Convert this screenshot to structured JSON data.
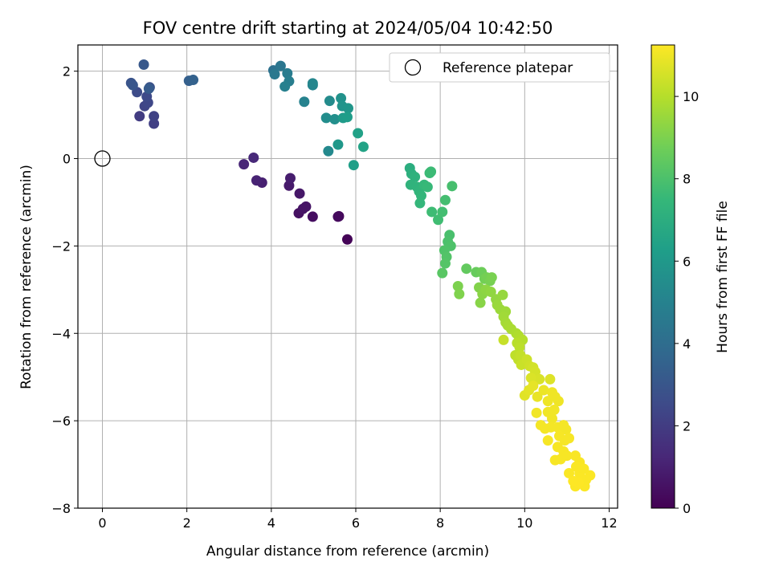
{
  "chart_data": {
    "type": "scatter",
    "title": "FOV centre drift starting at 2024/05/04 10:42:50",
    "xlabel": "Angular distance from reference (arcmin)",
    "ylabel": "Rotation from reference (arcmin)",
    "xlim": [
      -0.58,
      12.2
    ],
    "ylim": [
      -8.0,
      2.6
    ],
    "xticks": [
      0,
      2,
      4,
      6,
      8,
      10,
      12
    ],
    "yticks": [
      -8,
      -6,
      -4,
      -2,
      0,
      2
    ],
    "grid": true,
    "legend": {
      "position": "top-right",
      "entries": [
        "Reference platepar"
      ]
    },
    "reference_point": {
      "x": 0,
      "y": 0
    },
    "colorbar": {
      "label": "Hours from first FF file",
      "range": [
        0,
        11.25
      ],
      "ticks": [
        0,
        2,
        4,
        6,
        8,
        10
      ],
      "colormap": "viridis",
      "colors": [
        "#440154",
        "#482878",
        "#3e4a89",
        "#31688e",
        "#26828e",
        "#1f9e89",
        "#35b779",
        "#6ece58",
        "#b5de2b",
        "#fde725"
      ]
    },
    "series": [
      {
        "points": [
          [
            5.8,
            -1.85,
            0.1
          ],
          [
            5.6,
            -1.32,
            0.2
          ],
          [
            5.58,
            -1.33,
            0.3
          ],
          [
            4.98,
            -1.33,
            0.4
          ],
          [
            4.65,
            -1.25,
            0.5
          ],
          [
            4.82,
            -1.1,
            0.6
          ],
          [
            4.75,
            -1.15,
            0.6
          ],
          [
            4.67,
            -0.8,
            0.7
          ],
          [
            4.42,
            -0.62,
            0.8
          ],
          [
            4.45,
            -0.45,
            0.9
          ],
          [
            3.78,
            -0.55,
            1.0
          ],
          [
            3.65,
            -0.5,
            1.1
          ],
          [
            3.35,
            -0.13,
            1.2
          ],
          [
            3.58,
            0.02,
            1.3
          ],
          [
            0.88,
            0.97,
            2.0
          ],
          [
            1.22,
            0.8,
            2.1
          ],
          [
            1.22,
            0.97,
            2.2
          ],
          [
            1.0,
            1.2,
            2.3
          ],
          [
            1.08,
            1.28,
            2.4
          ],
          [
            1.05,
            1.42,
            2.5
          ],
          [
            0.82,
            1.52,
            2.6
          ],
          [
            1.12,
            1.63,
            2.8
          ],
          [
            0.68,
            1.73,
            2.9
          ],
          [
            0.72,
            1.68,
            3.0
          ],
          [
            0.98,
            2.15,
            3.1
          ],
          [
            1.1,
            1.6,
            3.2
          ],
          [
            2.05,
            1.78,
            3.4
          ],
          [
            2.15,
            1.8,
            3.5
          ],
          [
            4.05,
            2.02,
            4.2
          ],
          [
            4.22,
            2.12,
            4.4
          ],
          [
            4.08,
            1.93,
            4.5
          ],
          [
            4.38,
            1.95,
            4.7
          ],
          [
            4.42,
            1.77,
            4.8
          ],
          [
            4.32,
            1.65,
            4.9
          ],
          [
            4.78,
            1.3,
            5.0
          ],
          [
            4.98,
            1.68,
            5.1
          ],
          [
            4.98,
            1.72,
            5.2
          ],
          [
            5.35,
            0.17,
            5.3
          ],
          [
            5.38,
            1.32,
            5.4
          ],
          [
            5.3,
            0.93,
            5.5
          ],
          [
            5.5,
            0.9,
            5.6
          ],
          [
            5.65,
            1.38,
            5.7
          ],
          [
            5.68,
            1.2,
            5.8
          ],
          [
            5.82,
            1.15,
            5.9
          ],
          [
            5.58,
            0.32,
            6.0
          ],
          [
            5.7,
            0.93,
            6.1
          ],
          [
            5.8,
            0.95,
            6.2
          ],
          [
            5.95,
            -0.15,
            6.3
          ],
          [
            6.05,
            0.58,
            6.4
          ],
          [
            6.18,
            0.27,
            6.5
          ],
          [
            7.28,
            -0.22,
            7.0
          ],
          [
            7.32,
            -0.35,
            7.1
          ],
          [
            7.4,
            -0.42,
            7.2
          ],
          [
            7.3,
            -0.6,
            7.25
          ],
          [
            7.45,
            -0.65,
            7.3
          ],
          [
            7.5,
            -0.75,
            7.35
          ],
          [
            7.55,
            -0.85,
            7.4
          ],
          [
            7.52,
            -1.02,
            7.45
          ],
          [
            7.62,
            -0.6,
            7.5
          ],
          [
            7.7,
            -0.65,
            7.55
          ],
          [
            7.75,
            -0.33,
            7.6
          ],
          [
            7.78,
            -0.3,
            7.65
          ],
          [
            7.8,
            -1.22,
            7.7
          ],
          [
            7.95,
            -1.4,
            7.75
          ],
          [
            8.05,
            -1.22,
            7.8
          ],
          [
            8.12,
            -0.95,
            7.85
          ],
          [
            8.28,
            -0.63,
            7.9
          ],
          [
            8.22,
            -1.75,
            7.95
          ],
          [
            8.18,
            -1.9,
            8.0
          ],
          [
            8.25,
            -2.0,
            8.05
          ],
          [
            8.1,
            -2.1,
            8.1
          ],
          [
            8.15,
            -2.25,
            8.15
          ],
          [
            8.12,
            -2.4,
            8.2
          ],
          [
            8.05,
            -2.62,
            8.3
          ],
          [
            8.62,
            -2.52,
            8.5
          ],
          [
            8.85,
            -2.6,
            8.6
          ],
          [
            8.98,
            -2.6,
            8.7
          ],
          [
            9.05,
            -2.75,
            8.8
          ],
          [
            9.1,
            -2.72,
            8.85
          ],
          [
            9.18,
            -2.8,
            8.9
          ],
          [
            9.22,
            -2.72,
            8.95
          ],
          [
            8.42,
            -2.92,
            9.0
          ],
          [
            8.45,
            -3.1,
            9.05
          ],
          [
            8.92,
            -2.95,
            9.1
          ],
          [
            8.95,
            -3.3,
            9.2
          ],
          [
            9.0,
            -3.1,
            9.25
          ],
          [
            9.08,
            -3.0,
            9.3
          ],
          [
            9.2,
            -3.05,
            9.35
          ],
          [
            9.32,
            -3.22,
            9.4
          ],
          [
            9.48,
            -3.12,
            9.45
          ],
          [
            9.35,
            -3.35,
            9.5
          ],
          [
            9.42,
            -3.45,
            9.55
          ],
          [
            9.55,
            -3.5,
            9.6
          ],
          [
            9.5,
            -3.62,
            9.65
          ],
          [
            9.55,
            -3.75,
            9.7
          ],
          [
            9.6,
            -3.82,
            9.75
          ],
          [
            9.68,
            -3.9,
            9.8
          ],
          [
            9.8,
            -4.0,
            9.85
          ],
          [
            9.85,
            -4.05,
            9.9
          ],
          [
            9.9,
            -4.12,
            9.95
          ],
          [
            9.95,
            -4.15,
            10.0
          ],
          [
            9.82,
            -4.22,
            10.05
          ],
          [
            9.88,
            -4.32,
            10.1
          ],
          [
            9.78,
            -4.5,
            10.15
          ],
          [
            9.85,
            -4.6,
            10.2
          ],
          [
            9.9,
            -4.5,
            10.25
          ],
          [
            9.5,
            -4.15,
            10.3
          ],
          [
            9.92,
            -4.72,
            10.35
          ],
          [
            10.05,
            -4.6,
            10.4
          ],
          [
            10.12,
            -4.75,
            10.45
          ],
          [
            10.2,
            -4.78,
            10.5
          ],
          [
            10.25,
            -4.88,
            10.55
          ],
          [
            10.35,
            -5.05,
            10.6
          ],
          [
            10.15,
            -5.02,
            10.65
          ],
          [
            10.6,
            -5.05,
            10.7
          ],
          [
            10.0,
            -5.42,
            10.75
          ],
          [
            10.1,
            -5.3,
            10.8
          ],
          [
            10.2,
            -5.2,
            10.85
          ],
          [
            10.3,
            -5.45,
            10.9
          ],
          [
            10.45,
            -5.3,
            10.95
          ],
          [
            10.55,
            -5.55,
            11.0
          ],
          [
            10.65,
            -5.35,
            11.0
          ],
          [
            10.72,
            -5.45,
            11.0
          ],
          [
            10.8,
            -5.55,
            11.0
          ],
          [
            10.28,
            -5.82,
            11.05
          ],
          [
            10.55,
            -5.8,
            11.05
          ],
          [
            10.65,
            -5.95,
            11.05
          ],
          [
            10.7,
            -5.75,
            11.05
          ],
          [
            10.38,
            -6.1,
            11.1
          ],
          [
            10.48,
            -6.18,
            11.1
          ],
          [
            10.62,
            -6.15,
            11.1
          ],
          [
            10.78,
            -6.15,
            11.1
          ],
          [
            10.92,
            -6.1,
            11.1
          ],
          [
            10.98,
            -6.2,
            11.1
          ],
          [
            10.55,
            -6.45,
            11.12
          ],
          [
            10.82,
            -6.35,
            11.12
          ],
          [
            10.95,
            -6.45,
            11.12
          ],
          [
            11.05,
            -6.4,
            11.12
          ],
          [
            10.78,
            -6.6,
            11.15
          ],
          [
            10.92,
            -6.7,
            11.15
          ],
          [
            10.72,
            -6.9,
            11.15
          ],
          [
            10.85,
            -6.88,
            11.15
          ],
          [
            11.0,
            -6.8,
            11.15
          ],
          [
            11.2,
            -6.8,
            11.18
          ],
          [
            11.3,
            -6.95,
            11.18
          ],
          [
            11.05,
            -7.2,
            11.2
          ],
          [
            11.22,
            -7.05,
            11.2
          ],
          [
            11.3,
            -7.2,
            11.2
          ],
          [
            11.4,
            -7.1,
            11.2
          ],
          [
            11.55,
            -7.25,
            11.22
          ],
          [
            11.45,
            -7.35,
            11.22
          ],
          [
            11.32,
            -7.3,
            11.22
          ],
          [
            11.2,
            -7.5,
            11.22
          ],
          [
            11.42,
            -7.5,
            11.22
          ],
          [
            11.28,
            -7.42,
            11.25
          ],
          [
            11.15,
            -7.38,
            11.25
          ]
        ]
      }
    ]
  }
}
